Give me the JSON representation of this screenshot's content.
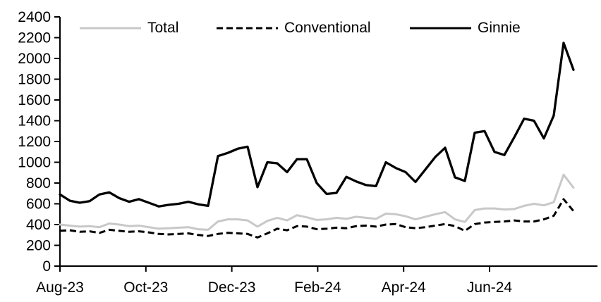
{
  "chart_data": {
    "type": "line",
    "title": "",
    "xlabel": "",
    "ylabel": "",
    "ylim": [
      0,
      2400
    ],
    "y_tick_step": 200,
    "y_ticks": [
      0,
      200,
      400,
      600,
      800,
      1000,
      1200,
      1400,
      1600,
      1800,
      2000,
      2200,
      2400
    ],
    "x_tick_labels": [
      "Aug-23",
      "Oct-23",
      "Dec-23",
      "Feb-24",
      "Apr-24",
      "Jun-24"
    ],
    "grid": false,
    "legend_position": "top",
    "axis_color": "#000000",
    "n_points": 53,
    "series": [
      {
        "name": "Total",
        "color": "#c8c8c8",
        "style": "solid",
        "values": [
          400,
          390,
          380,
          385,
          375,
          410,
          400,
          385,
          390,
          375,
          360,
          365,
          370,
          375,
          355,
          350,
          430,
          450,
          450,
          440,
          380,
          435,
          465,
          440,
          490,
          470,
          445,
          450,
          465,
          455,
          475,
          465,
          455,
          505,
          500,
          480,
          450,
          475,
          500,
          520,
          450,
          425,
          540,
          555,
          555,
          545,
          550,
          580,
          600,
          585,
          615,
          880,
          755
        ]
      },
      {
        "name": "Conventional",
        "color": "#000000",
        "style": "dashed",
        "values": [
          340,
          345,
          330,
          335,
          320,
          350,
          340,
          330,
          335,
          325,
          310,
          305,
          310,
          315,
          300,
          290,
          310,
          320,
          315,
          310,
          275,
          315,
          360,
          345,
          385,
          380,
          355,
          360,
          370,
          365,
          385,
          390,
          380,
          400,
          405,
          375,
          365,
          375,
          390,
          405,
          385,
          340,
          405,
          420,
          425,
          430,
          440,
          430,
          430,
          450,
          485,
          645,
          530
        ]
      },
      {
        "name": "Ginnie",
        "color": "#000000",
        "style": "solid",
        "values": [
          690,
          630,
          610,
          625,
          690,
          710,
          655,
          620,
          645,
          610,
          575,
          590,
          600,
          620,
          595,
          580,
          1060,
          1090,
          1130,
          1150,
          760,
          1000,
          990,
          905,
          1030,
          1030,
          800,
          695,
          705,
          860,
          815,
          780,
          770,
          1000,
          945,
          905,
          810,
          930,
          1050,
          1140,
          855,
          820,
          1285,
          1300,
          1100,
          1070,
          1240,
          1420,
          1400,
          1230,
          1450,
          2150,
          1890
        ]
      }
    ]
  }
}
